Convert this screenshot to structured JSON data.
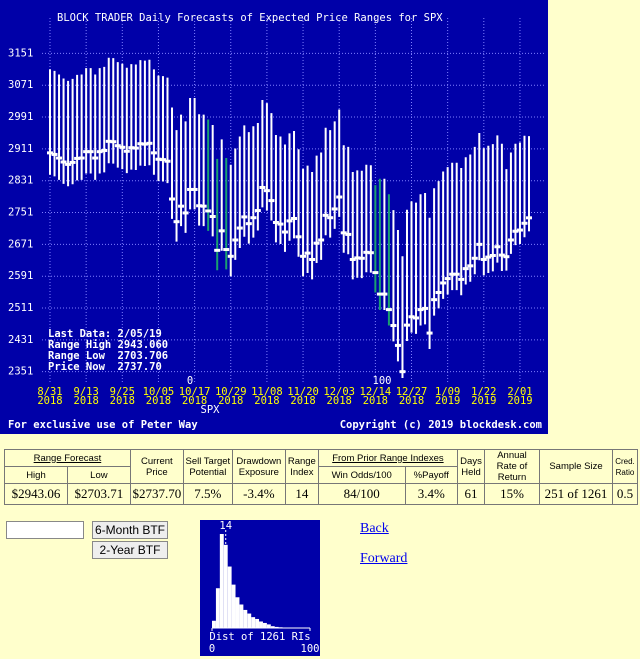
{
  "chart_data": [
    {
      "type": "range",
      "title": "BLOCK TRADER Daily Forecasts of Expected Price Ranges for  SPX",
      "categories": [
        "8/31 2018",
        null,
        null,
        null,
        null,
        null,
        null,
        null,
        "9/13 2018",
        null,
        null,
        null,
        null,
        null,
        null,
        null,
        "9/25 2018",
        null,
        null,
        null,
        null,
        null,
        null,
        null,
        "10/05 2018",
        null,
        null,
        null,
        null,
        null,
        null,
        null,
        "10/17 2018",
        null,
        null,
        null,
        null,
        null,
        null,
        null,
        "10/29 2018",
        null,
        null,
        null,
        null,
        null,
        null,
        null,
        "11/08 2018",
        null,
        null,
        null,
        null,
        null,
        null,
        null,
        "11/20 2018",
        null,
        null,
        null,
        null,
        null,
        null,
        null,
        "12/03 2018",
        null,
        null,
        null,
        null,
        null,
        null,
        null,
        "12/14 2018",
        null,
        null,
        null,
        null,
        null,
        null,
        null,
        "12/27 2018",
        null,
        null,
        null,
        null,
        null,
        null,
        null,
        "1/09 2019",
        null,
        null,
        null,
        null,
        null,
        null,
        null,
        "1/22 2019",
        null,
        null,
        null,
        null,
        null,
        null,
        null,
        "2/01 2019",
        null,
        null
      ],
      "highs": [
        3111,
        3107,
        3098,
        3088,
        3082,
        3087,
        3097,
        3098,
        3114,
        3114,
        3098,
        3114,
        3117,
        3140,
        3139,
        3129,
        3125,
        3115,
        3124,
        3123,
        3134,
        3133,
        3135,
        3111,
        3095,
        3094,
        3090,
        3015,
        2958,
        2997,
        2980,
        3039,
        3039,
        2998,
        2997,
        2985,
        2971,
        2886,
        2935,
        2888,
        2871,
        2912,
        2942,
        2970,
        2953,
        2968,
        2976,
        3034,
        3026,
        3001,
        2946,
        2942,
        2922,
        2950,
        2956,
        2910,
        2861,
        2869,
        2853,
        2894,
        2902,
        2964,
        2958,
        2980,
        3010,
        2920,
        2916,
        2853,
        2857,
        2856,
        2871,
        2870,
        2820,
        2836,
        2836,
        2797,
        2757,
        2707,
        2641,
        2758,
        2779,
        2776,
        2797,
        2800,
        2738,
        2812,
        2830,
        2854,
        2865,
        2876,
        2876,
        2863,
        2890,
        2897,
        2916,
        2951,
        2913,
        2919,
        2923,
        2945,
        2924,
        2860,
        2902,
        2924,
        2927,
        2944,
        2943.06
      ],
      "lows": [
        2846,
        2842,
        2833,
        2823,
        2817,
        2822,
        2832,
        2833,
        2849,
        2849,
        2833,
        2849,
        2852,
        2875,
        2874,
        2864,
        2860,
        2850,
        2859,
        2858,
        2869,
        2868,
        2870,
        2846,
        2830,
        2829,
        2825,
        2735,
        2678,
        2717,
        2700,
        2759,
        2759,
        2718,
        2717,
        2705,
        2691,
        2606,
        2655,
        2608,
        2591,
        2632,
        2662,
        2690,
        2673,
        2688,
        2706,
        2764,
        2756,
        2731,
        2676,
        2672,
        2652,
        2680,
        2686,
        2640,
        2591,
        2599,
        2583,
        2624,
        2632,
        2694,
        2688,
        2710,
        2740,
        2650,
        2646,
        2583,
        2587,
        2586,
        2601,
        2600,
        2550,
        2506,
        2506,
        2467,
        2427,
        2377,
        2335,
        2428,
        2449,
        2446,
        2467,
        2470,
        2408,
        2492,
        2510,
        2534,
        2545,
        2556,
        2556,
        2543,
        2570,
        2577,
        2596,
        2631,
        2593,
        2599,
        2603,
        2625,
        2604,
        2605,
        2647,
        2669,
        2672,
        2689,
        2703.71
      ],
      "prices": [
        2901,
        2897,
        2888,
        2878,
        2872,
        2877,
        2887,
        2888,
        2904,
        2904,
        2888,
        2904,
        2907,
        2930,
        2929,
        2919,
        2915,
        2905,
        2914,
        2913,
        2924,
        2923,
        2925,
        2901,
        2885,
        2884,
        2880,
        2785,
        2728,
        2767,
        2750,
        2809,
        2809,
        2768,
        2767,
        2755,
        2741,
        2656,
        2705,
        2658,
        2641,
        2682,
        2712,
        2740,
        2723,
        2738,
        2756,
        2814,
        2806,
        2781,
        2726,
        2722,
        2702,
        2730,
        2736,
        2690,
        2641,
        2649,
        2633,
        2674,
        2682,
        2744,
        2738,
        2760,
        2790,
        2700,
        2696,
        2633,
        2637,
        2636,
        2651,
        2650,
        2600,
        2546,
        2546,
        2507,
        2467,
        2417,
        2351,
        2468,
        2489,
        2486,
        2507,
        2510,
        2448,
        2532,
        2550,
        2574,
        2585,
        2596,
        2596,
        2583,
        2610,
        2617,
        2636,
        2671,
        2633,
        2639,
        2643,
        2665,
        2644,
        2640,
        2682,
        2704,
        2707,
        2724,
        2737.7
      ],
      "colors": [
        "#fff",
        "#fff",
        "#fff",
        "#fff",
        "#fff",
        "#fff",
        "#fff",
        "#fff",
        "#fff",
        "#fff",
        "#fff",
        "#fff",
        "#fff",
        "#fff",
        "#fff",
        "#fff",
        "#fff",
        "#fff",
        "#fff",
        "#fff",
        "#fff",
        "#fff",
        "#fff",
        "#fff",
        "#fff",
        "#fff",
        "#fff",
        "#fff",
        "#fff",
        "#fff",
        "#fff",
        "#fff",
        "#fff",
        "#fff",
        "#fff",
        "#1aa070",
        "#fff",
        "#1aa070",
        "#fff",
        "#1aa070",
        "#fff",
        "#fff",
        "#fff",
        "#fff",
        "#fff",
        "#fff",
        "#fff",
        "#fff",
        "#fff",
        "#fff",
        "#fff",
        "#fff",
        "#fff",
        "#fff",
        "#fff",
        "#fff",
        "#fff",
        "#fff",
        "#fff",
        "#fff",
        "#fff",
        "#fff",
        "#fff",
        "#fff",
        "#fff",
        "#fff",
        "#fff",
        "#fff",
        "#fff",
        "#fff",
        "#fff",
        "#fff",
        "#1aa070",
        "#1aa070",
        "#fff",
        "#1aa070",
        "#fff",
        "#fff",
        "#fff",
        "#fff",
        "#fff",
        "#fff",
        "#fff",
        "#fff",
        "#fff",
        "#fff",
        "#fff",
        "#fff",
        "#fff",
        "#fff",
        "#fff",
        "#fff",
        "#fff",
        "#fff",
        "#fff",
        "#fff",
        "#fff",
        "#fff",
        "#fff",
        "#fff",
        "#fff",
        "#fff",
        "#fff",
        "#fff",
        "#fff",
        "#fff",
        "#fff"
      ],
      "ylim": [
        2320,
        3240
      ],
      "yticks": [
        2351,
        2431,
        2511,
        2591,
        2671,
        2751,
        2831,
        2911,
        2991,
        3071,
        3151
      ],
      "grid": true,
      "x_label": "SPX",
      "index_marks": [
        "0",
        "100"
      ],
      "info": [
        "Last Data: 2/05/19",
        "Range High 2943.060",
        "Range Low  2703.706",
        "Price Now  2737.70"
      ],
      "footer_left": "For exclusive use of Peter Way",
      "footer_right": "Copyright (c) 2019 blockdesk.com"
    },
    {
      "type": "histogram",
      "title": "Dist of 1261 RIs",
      "bins": [
        0,
        4,
        8,
        12,
        16,
        20,
        24,
        28,
        32,
        36,
        40,
        44,
        48,
        52,
        56,
        60,
        64,
        68,
        72,
        76,
        80,
        84,
        88,
        92,
        96,
        100
      ],
      "counts": [
        20,
        110,
        260,
        230,
        170,
        120,
        85,
        65,
        50,
        40,
        30,
        25,
        18,
        14,
        10,
        5,
        3,
        2,
        1,
        1,
        1,
        1,
        0,
        0,
        0
      ],
      "xlim": [
        0,
        100
      ],
      "xticks": [
        0,
        100
      ],
      "marker": 14,
      "color": "#ffffff"
    }
  ],
  "table": {
    "header_top": [
      "Range Forecast",
      "Current Price",
      "Sell Target Potential",
      "Drawdown Exposure",
      "Range Index",
      "From Prior Range Indexes",
      "Days Held",
      "Annual Rate of Return",
      "Sample Size",
      "Cred. Ratio"
    ],
    "header_sub": [
      "High",
      "Low",
      "Win Odds/100",
      "%Payoff"
    ],
    "row": [
      "$2943.06",
      "$2703.71",
      "$2737.70",
      "7.5%",
      "-3.4%",
      "14",
      "84/100",
      "3.4%",
      "61",
      "15%",
      "251 of 1261",
      "0.5"
    ]
  },
  "controls": {
    "buttons": [
      "6-Month BTF",
      "2-Year BTF"
    ],
    "links": [
      "Back",
      "Forward"
    ]
  }
}
